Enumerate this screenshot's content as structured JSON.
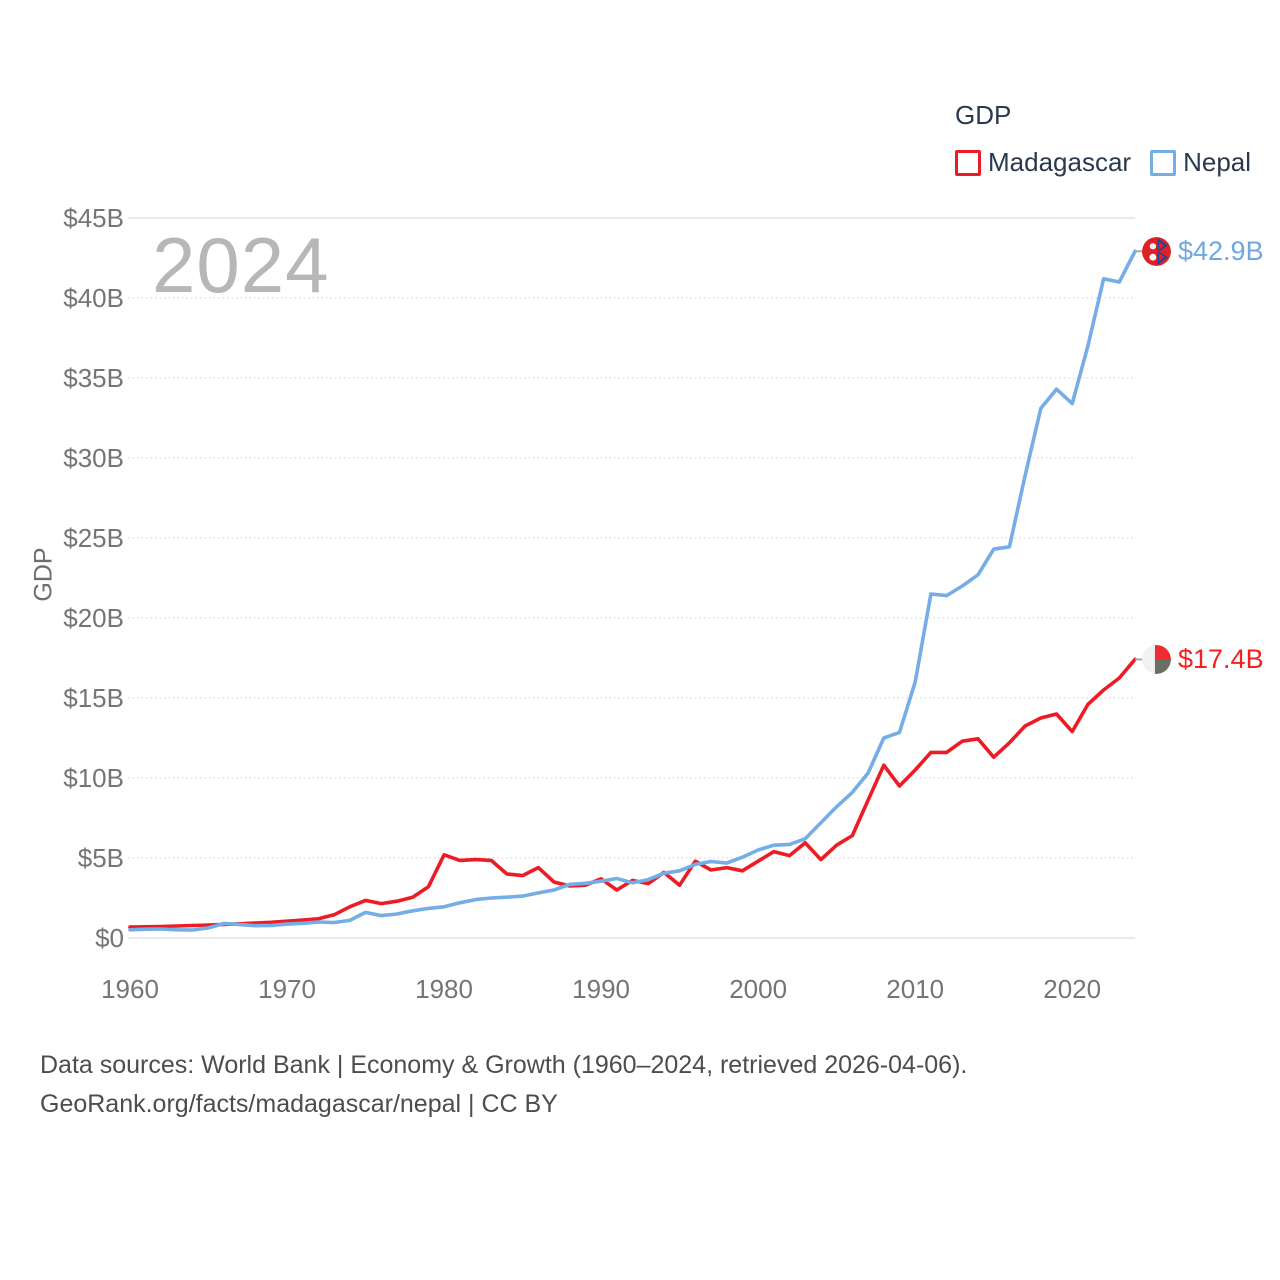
{
  "watermark": "2024",
  "legend": {
    "title": "GDP",
    "items": [
      {
        "label": "Madagascar",
        "color": "#ed1c24"
      },
      {
        "label": "Nepal",
        "color": "#75ade6"
      }
    ]
  },
  "y_axis": {
    "label": "GDP",
    "ticks": [
      {
        "label": "$0",
        "value": 0
      },
      {
        "label": "$5B",
        "value": 5
      },
      {
        "label": "$10B",
        "value": 10
      },
      {
        "label": "$15B",
        "value": 15
      },
      {
        "label": "$20B",
        "value": 20
      },
      {
        "label": "$25B",
        "value": 25
      },
      {
        "label": "$30B",
        "value": 30
      },
      {
        "label": "$35B",
        "value": 35
      },
      {
        "label": "$40B",
        "value": 40
      },
      {
        "label": "$45B",
        "value": 45
      }
    ]
  },
  "x_axis": {
    "ticks": [
      {
        "label": "1960",
        "value": 1960
      },
      {
        "label": "1970",
        "value": 1970
      },
      {
        "label": "1980",
        "value": 1980
      },
      {
        "label": "1990",
        "value": 1990
      },
      {
        "label": "2000",
        "value": 2000
      },
      {
        "label": "2010",
        "value": 2010
      },
      {
        "label": "2020",
        "value": 2020
      }
    ]
  },
  "end_labels": {
    "nepal": {
      "text": "$42.9B",
      "color": "#6fa8e0"
    },
    "madagascar": {
      "text": "$17.4B",
      "color": "#f51f1f"
    }
  },
  "footer": {
    "line1": "Data sources: World Bank | Economy & Growth (1960–2024, retrieved 2026-04-06).",
    "line2": "GeoRank.org/facts/madagascar/nepal | CC BY"
  },
  "chart_data": {
    "type": "line",
    "title": "GDP",
    "ylabel": "GDP",
    "units": "billions of current US$",
    "xlim": [
      1960,
      2024
    ],
    "ylim": [
      0,
      45
    ],
    "grid": true,
    "legend_position": "top-right",
    "x": [
      1960,
      1961,
      1962,
      1963,
      1964,
      1965,
      1966,
      1967,
      1968,
      1969,
      1970,
      1971,
      1972,
      1973,
      1974,
      1975,
      1976,
      1977,
      1978,
      1979,
      1980,
      1981,
      1982,
      1983,
      1984,
      1985,
      1986,
      1987,
      1988,
      1989,
      1990,
      1991,
      1992,
      1993,
      1994,
      1995,
      1996,
      1997,
      1998,
      1999,
      2000,
      2001,
      2002,
      2003,
      2004,
      2005,
      2006,
      2007,
      2008,
      2009,
      2010,
      2011,
      2012,
      2013,
      2014,
      2015,
      2016,
      2017,
      2018,
      2019,
      2020,
      2021,
      2022,
      2023,
      2024
    ],
    "series": [
      {
        "name": "Madagascar",
        "color": "#ed1c24",
        "values": [
          0.68,
          0.7,
          0.72,
          0.75,
          0.78,
          0.81,
          0.85,
          0.89,
          0.94,
          0.98,
          1.05,
          1.12,
          1.2,
          1.45,
          1.95,
          2.35,
          2.15,
          2.3,
          2.55,
          3.2,
          5.2,
          4.85,
          4.9,
          4.85,
          4.0,
          3.9,
          4.4,
          3.5,
          3.25,
          3.3,
          3.7,
          3.0,
          3.6,
          3.4,
          4.1,
          3.3,
          4.8,
          4.25,
          4.4,
          4.2,
          4.8,
          5.4,
          5.15,
          5.95,
          4.9,
          5.8,
          6.4,
          8.6,
          10.8,
          9.5,
          10.5,
          11.6,
          11.6,
          12.3,
          12.45,
          11.3,
          12.2,
          13.25,
          13.75,
          14.0,
          12.9,
          14.6,
          15.5,
          16.25,
          17.41
        ]
      },
      {
        "name": "Nepal",
        "color": "#75ade6",
        "values": [
          0.51,
          0.55,
          0.56,
          0.51,
          0.5,
          0.63,
          0.91,
          0.84,
          0.77,
          0.79,
          0.87,
          0.92,
          1.0,
          0.97,
          1.1,
          1.6,
          1.4,
          1.5,
          1.7,
          1.85,
          1.95,
          2.2,
          2.4,
          2.5,
          2.55,
          2.62,
          2.82,
          3.0,
          3.35,
          3.42,
          3.55,
          3.72,
          3.45,
          3.65,
          4.05,
          4.2,
          4.6,
          4.78,
          4.68,
          5.05,
          5.5,
          5.8,
          5.85,
          6.2,
          7.2,
          8.2,
          9.1,
          10.3,
          12.5,
          12.85,
          16.0,
          21.5,
          21.4,
          22.0,
          22.7,
          24.3,
          24.45,
          28.9,
          33.1,
          34.3,
          33.4,
          37.0,
          41.2,
          41.0,
          42.92
        ]
      }
    ]
  }
}
